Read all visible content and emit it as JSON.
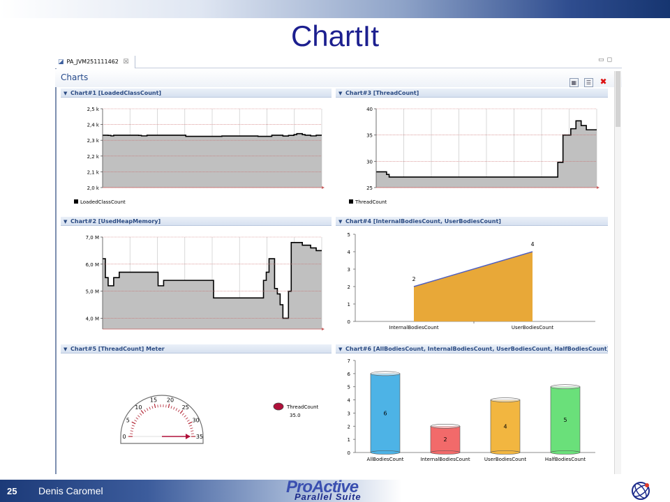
{
  "slide": {
    "title": "ChartIt",
    "page_number": "25",
    "author": "Denis Caromel",
    "logo_line1": "ProActive",
    "logo_line2": "Parallel Suite"
  },
  "window": {
    "tab_label": "PA_JVM251111462",
    "tab_close": "☒",
    "form_title": "Charts"
  },
  "colors": {
    "title": "#1c1f8f",
    "section_header": "#2a4a82",
    "area_fill": "#c0c0c0",
    "bodies_fill": "#e8a838",
    "bodies_line": "#5060c0",
    "meter_series": "#b0103a"
  },
  "sections": [
    {
      "title": "Chart#1 [LoadedClassCount]"
    },
    {
      "title": "Chart#3 [ThreadCount]"
    },
    {
      "title": "Chart#2 [UsedHeapMemory]"
    },
    {
      "title": "Chart#4 [InternalBodiesCount, UserBodiesCount]"
    },
    {
      "title": "Chart#5 [ThreadCount] Meter"
    },
    {
      "title": "Chart#6 [AllBodiesCount, InternalBodiesCount, UserBodiesCount, HalfBodiesCount]"
    }
  ],
  "chart_data": [
    {
      "id": "chart1",
      "type": "area",
      "legend": "LoadedClassCount",
      "ylim": [
        2.0,
        2.5
      ],
      "yticks": [
        "2,0 k",
        "2,1 k",
        "2,2 k",
        "2,3 k",
        "2,4 k",
        "2,5 k"
      ],
      "ytick_values": [
        2.0,
        2.1,
        2.2,
        2.3,
        2.4,
        2.5
      ],
      "values": [
        2.332,
        2.332,
        2.331,
        2.328,
        2.332,
        2.332,
        2.332,
        2.332,
        2.332,
        2.332,
        2.332,
        2.332,
        2.332,
        2.331,
        2.328,
        2.328,
        2.332,
        2.332,
        2.332,
        2.332,
        2.332,
        2.332,
        2.332,
        2.332,
        2.332,
        2.332,
        2.332,
        2.332,
        2.332,
        2.332,
        2.325,
        2.325,
        2.325,
        2.325,
        2.325,
        2.325,
        2.325,
        2.325,
        2.325,
        2.325,
        2.325,
        2.325,
        2.325,
        2.327,
        2.327,
        2.327,
        2.327,
        2.327,
        2.327,
        2.327,
        2.327,
        2.327,
        2.327,
        2.327,
        2.327,
        2.327,
        2.325,
        2.325,
        2.325,
        2.325,
        2.325,
        2.332,
        2.332,
        2.332,
        2.332,
        2.327,
        2.327,
        2.331,
        2.331,
        2.336,
        2.342,
        2.342,
        2.336,
        2.332,
        2.332,
        2.328,
        2.328,
        2.332,
        2.332
      ]
    },
    {
      "id": "chart3",
      "type": "area",
      "legend": "ThreadCount",
      "ylim": [
        25,
        40
      ],
      "yticks": [
        "25",
        "30",
        "35",
        "40"
      ],
      "ytick_values": [
        25,
        30,
        35,
        40
      ],
      "values": [
        28,
        28,
        28,
        28,
        27.5,
        27,
        27,
        27,
        27,
        27,
        27,
        27,
        27,
        27,
        27,
        27,
        27,
        27,
        27,
        27,
        27,
        27,
        27,
        27,
        27,
        27,
        27,
        27,
        27,
        27,
        27,
        27,
        27,
        27,
        27,
        27,
        27,
        27,
        27,
        27,
        27,
        27,
        27,
        27,
        27,
        27,
        27,
        27,
        27,
        27,
        27,
        27,
        27,
        27,
        27,
        27,
        27,
        27,
        27,
        27,
        27,
        27,
        27,
        27,
        27,
        27,
        27,
        27,
        27,
        27,
        29.8,
        29.8,
        35,
        35,
        35,
        36.2,
        36.2,
        37.7,
        37.7,
        36.8,
        36.8,
        36.0,
        36.0,
        36.0,
        36.0
      ]
    },
    {
      "id": "chart2",
      "type": "area",
      "legend": "UsedHeapMemory",
      "ylim": [
        3.6,
        7.0
      ],
      "yticks": [
        "4,0 M",
        "5,0 M",
        "6,0 M",
        "7,0 M"
      ],
      "ytick_values": [
        4.0,
        5.0,
        6.0,
        7.0
      ],
      "values": [
        6.2,
        5.5,
        5.2,
        5.2,
        5.5,
        5.5,
        5.7,
        5.7,
        5.7,
        5.7,
        5.7,
        5.7,
        5.7,
        5.7,
        5.7,
        5.7,
        5.7,
        5.7,
        5.7,
        5.7,
        5.2,
        5.2,
        5.4,
        5.4,
        5.4,
        5.4,
        5.4,
        5.4,
        5.4,
        5.4,
        5.4,
        5.4,
        5.4,
        5.4,
        5.4,
        5.4,
        5.4,
        5.4,
        5.4,
        5.4,
        4.75,
        4.75,
        4.75,
        4.75,
        4.75,
        4.75,
        4.75,
        4.75,
        4.75,
        4.75,
        4.75,
        4.75,
        4.75,
        4.75,
        4.75,
        4.75,
        4.75,
        4.75,
        5.4,
        5.7,
        6.2,
        6.2,
        5.1,
        4.9,
        4.5,
        4.0,
        4.0,
        5.0,
        6.8,
        6.8,
        6.8,
        6.8,
        6.7,
        6.7,
        6.7,
        6.6,
        6.6,
        6.5,
        6.5
      ]
    },
    {
      "id": "chart4",
      "type": "area",
      "categories": [
        "InternalBodiesCount",
        "UserBodiesCount"
      ],
      "values": [
        2,
        4
      ],
      "data_labels": [
        "2",
        "4"
      ],
      "ylim": [
        0,
        5
      ],
      "yticks": [
        "0",
        "1",
        "2",
        "3",
        "4",
        "5"
      ]
    },
    {
      "id": "chart5",
      "type": "gauge",
      "legend": "ThreadCount",
      "legend_value": "35.0",
      "value": 35,
      "range": [
        0,
        35
      ],
      "tick_labels": [
        "0",
        "5",
        "10",
        "15",
        "20",
        "25",
        "30",
        "35"
      ]
    },
    {
      "id": "chart6",
      "type": "bar",
      "categories": [
        "AllBodiesCount",
        "InternalBodiesCount",
        "UserBodiesCount",
        "HalfBodiesCount"
      ],
      "values": [
        6,
        2,
        4,
        5
      ],
      "data_labels": [
        "6",
        "2",
        "4",
        "5"
      ],
      "colors": [
        "#4db3e6",
        "#f26a6a",
        "#f2b640",
        "#6ae07a"
      ],
      "ylim": [
        0,
        7
      ],
      "yticks": [
        "0",
        "1",
        "2",
        "3",
        "4",
        "5",
        "6",
        "7"
      ]
    }
  ]
}
